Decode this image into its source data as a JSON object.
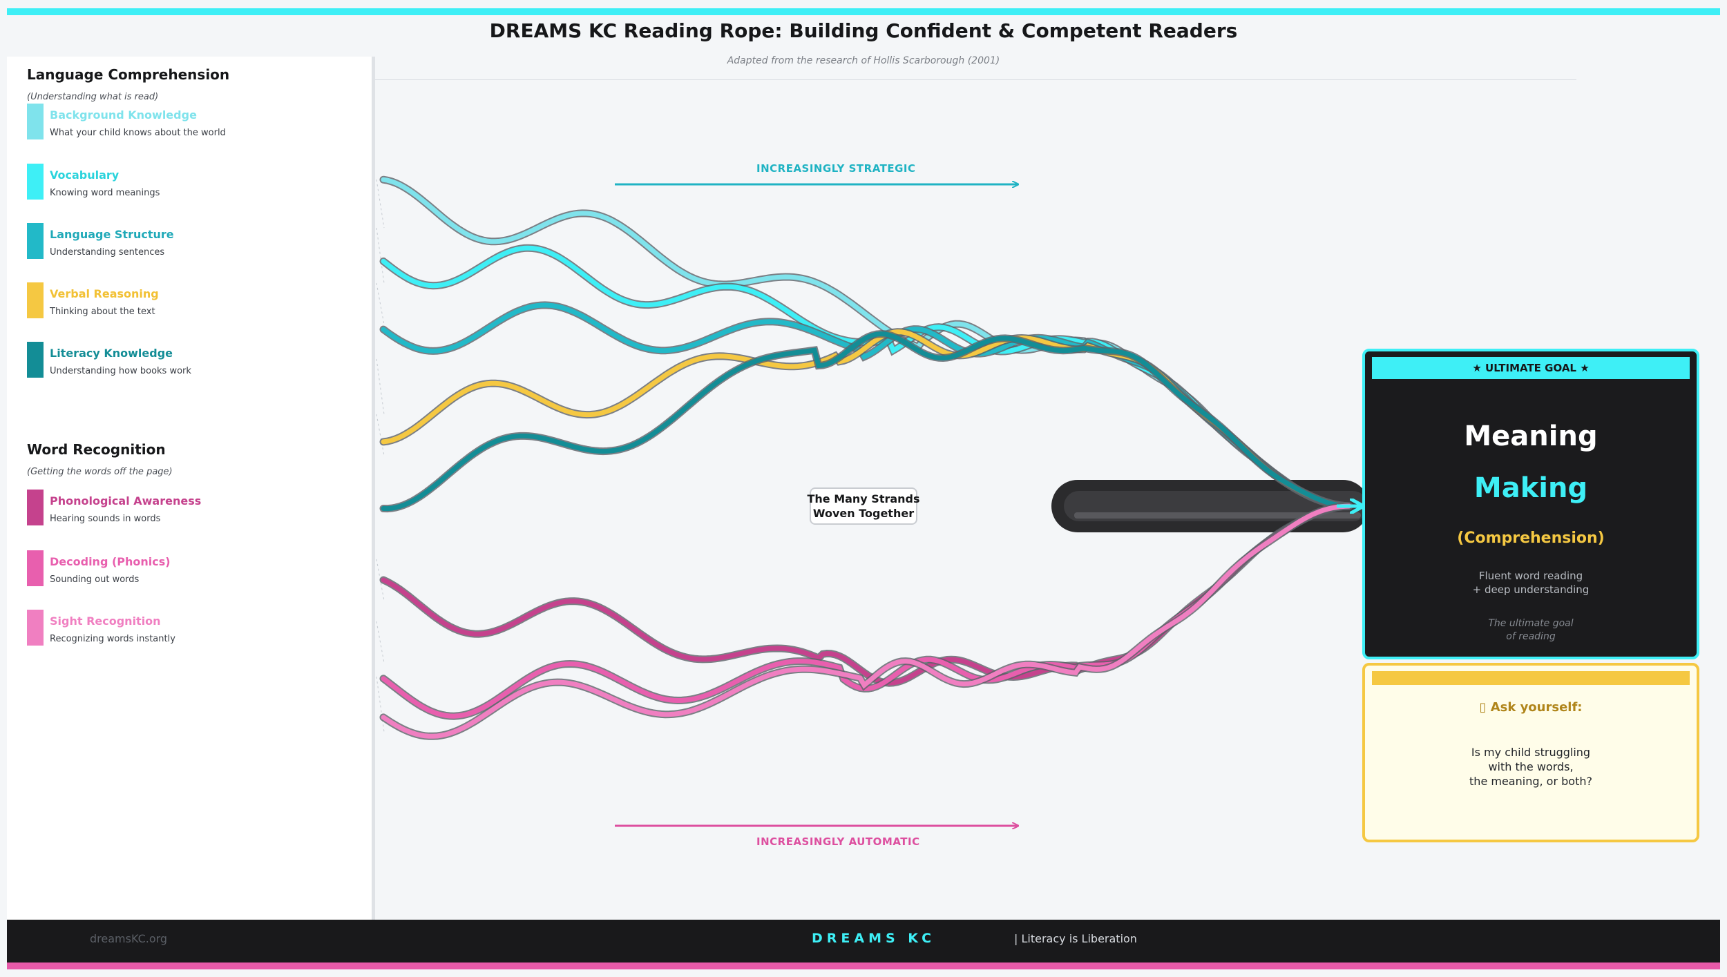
{
  "header": {
    "title": "DREAMS KC Reading Rope: Building Confident & Competent Readers",
    "subtitle": "Adapted from the research of Hollis Scarborough (2001)"
  },
  "legend": {
    "language": {
      "title": "Language Comprehension",
      "subtitle": "(Understanding what is read)",
      "items": [
        {
          "label": "Background Knowledge",
          "desc": "What your child knows about the world",
          "color": "#7fe3ec"
        },
        {
          "label": "Vocabulary",
          "desc": "Knowing word meanings",
          "color": "#3eeff6"
        },
        {
          "label": "Language Structure",
          "desc": "Understanding sentences",
          "color": "#22b9c8"
        },
        {
          "label": "Verbal Reasoning",
          "desc": "Thinking about the text",
          "color": "#f5c842"
        },
        {
          "label": "Literacy Knowledge",
          "desc": "Understanding how books work",
          "color": "#138d96"
        }
      ]
    },
    "word": {
      "title": "Word Recognition",
      "subtitle": "(Getting the words off the page)",
      "items": [
        {
          "label": "Phonological Awareness",
          "desc": "Hearing sounds in words",
          "color": "#c5428d"
        },
        {
          "label": "Decoding (Phonics)",
          "desc": "Sounding out words",
          "color": "#e85fae"
        },
        {
          "label": "Sight Recognition",
          "desc": "Recognizing words instantly",
          "color": "#f07fc1"
        }
      ]
    }
  },
  "diagram": {
    "top_arrow_label": "INCREASINGLY STRATEGIC",
    "bottom_arrow_label": "INCREASINGLY AUTOMATIC",
    "center_box": {
      "line1": "The Many Strands",
      "line2": "Woven Together"
    },
    "colors": {
      "strategic": "#1fb3c3",
      "automatic": "#dd4f9f"
    }
  },
  "goal": {
    "banner": "★  ULTIMATE GOAL  ★",
    "word1": "Meaning",
    "word2": "Making",
    "sub": "(Comprehension)",
    "desc_line1": "Fluent word reading",
    "desc_line2": "+ deep understanding",
    "note_line1": "The ultimate goal",
    "note_line2": "of reading"
  },
  "ask": {
    "title": "▯ Ask yourself:",
    "line1": "Is my child struggling",
    "line2": "with the words,",
    "line3": "the meaning, or both?"
  },
  "footer": {
    "left": "dreamsKC.org",
    "brand": "DREAMS KC",
    "right": "|  Literacy is Liberation"
  }
}
